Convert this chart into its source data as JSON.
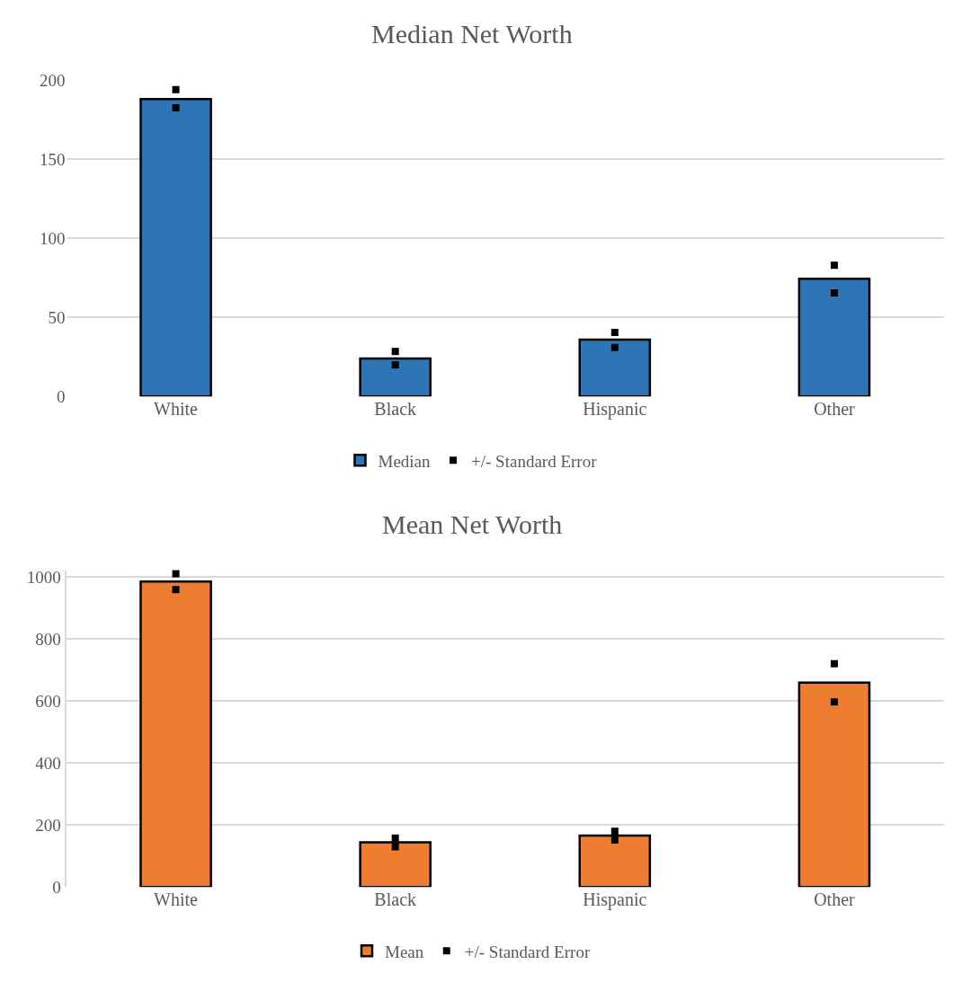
{
  "chart_data": [
    {
      "type": "bar",
      "title": "Median Net Worth",
      "categories": [
        "White",
        "Black",
        "Hispanic",
        "Other"
      ],
      "series": [
        {
          "name": "Median",
          "color": "#2e75b6",
          "values": [
            188,
            24,
            36,
            74.5
          ]
        },
        {
          "name": "+/- Standard Error",
          "type": "scatter",
          "color": "#000000",
          "values": [
            194,
            28.5,
            40.5,
            83
          ]
        },
        {
          "type": "scatter",
          "color": "#000000",
          "values": [
            182.5,
            20,
            31,
            65.5
          ]
        }
      ],
      "ylim": [
        0,
        200
      ],
      "yticks": [
        0,
        50,
        100,
        150,
        200
      ],
      "grid": "y",
      "legend": "bottom"
    },
    {
      "type": "bar",
      "title": "Mean Net Worth",
      "categories": [
        "White",
        "Black",
        "Hispanic",
        "Other"
      ],
      "series": [
        {
          "name": "Mean",
          "color": "#ed7d31",
          "values": [
            985,
            144,
            166,
            659
          ]
        },
        {
          "name": "+/- Standard Error",
          "type": "scatter",
          "color": "#000000",
          "values": [
            1010,
            158,
            180,
            720
          ]
        },
        {
          "type": "scatter",
          "color": "#000000",
          "values": [
            959,
            130,
            152,
            597
          ]
        }
      ],
      "ylim": [
        0,
        1020
      ],
      "yticks": [
        0,
        200,
        400,
        600,
        800,
        1000
      ],
      "grid": "y",
      "legend": "bottom"
    }
  ]
}
